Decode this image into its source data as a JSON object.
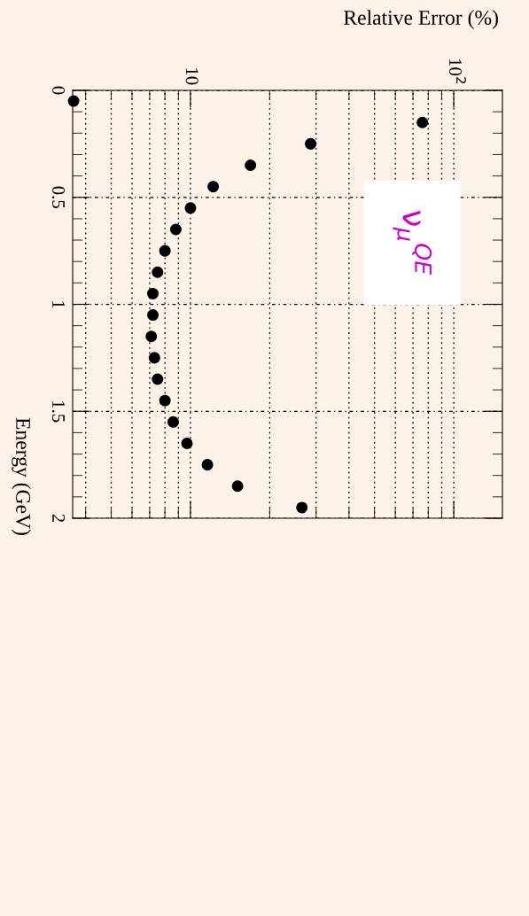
{
  "chart_data": {
    "type": "scatter",
    "xlabel": "Relative Error (%)",
    "ylabel": "Energy (GeV)",
    "x": [
      3.6,
      76,
      28.6,
      16.9,
      12.2,
      10.0,
      8.8,
      8.0,
      7.5,
      7.2,
      7.2,
      7.1,
      7.3,
      7.5,
      8.0,
      8.6,
      9.7,
      11.6,
      15.1,
      26.5
    ],
    "series": [
      {
        "color": "#000000",
        "values": [
          0.05,
          0.15,
          0.25,
          0.35,
          0.45,
          0.55,
          0.65,
          0.75,
          0.85,
          0.95,
          1.05,
          1.15,
          1.25,
          1.35,
          1.45,
          1.55,
          1.65,
          1.75,
          1.85,
          1.95
        ]
      }
    ],
    "ylim": [
      2,
      0
    ],
    "yticks": [
      0,
      0.5,
      1,
      1.5,
      2
    ],
    "xlim": [
      3.57,
      153
    ],
    "xticks": [
      {
        "value": 10,
        "label": "10"
      },
      {
        "value": 100,
        "label": "10$^{2}$"
      }
    ],
    "log": "x",
    "grid": true,
    "marker": "circle",
    "annotations": [
      "ν$_{μ}$$^{QE}$"
    ]
  }
}
